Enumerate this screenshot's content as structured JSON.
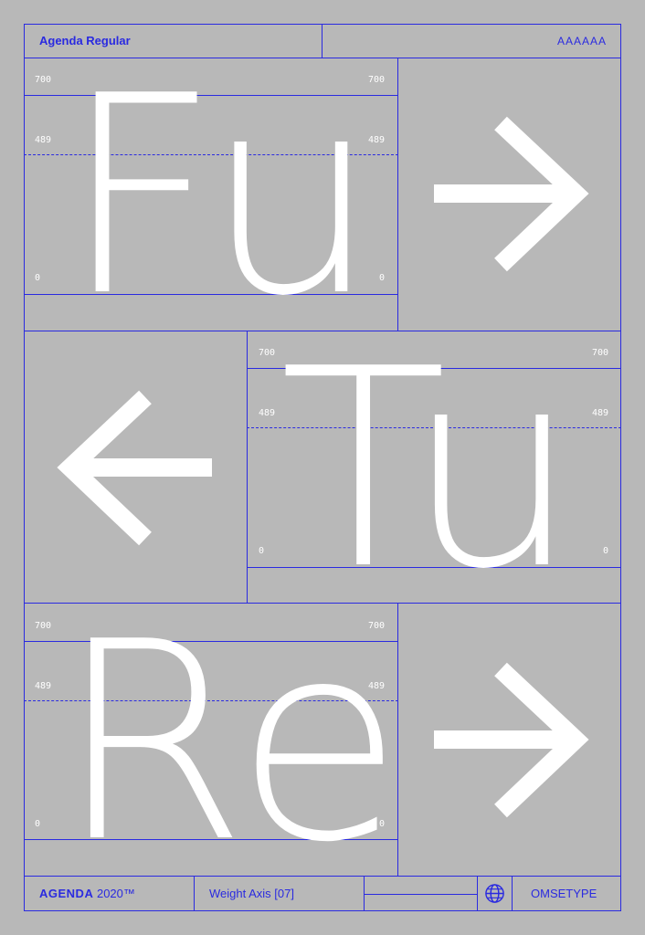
{
  "header": {
    "title": "Agenda Regular",
    "sample": "AAAAAA"
  },
  "metrics": {
    "top": "700",
    "x_height": "489",
    "baseline": "0"
  },
  "panels": [
    {
      "glyphs": "Fu",
      "arrow": "right"
    },
    {
      "glyphs": "Tu",
      "arrow": "left"
    },
    {
      "glyphs": "Re",
      "arrow": "right"
    }
  ],
  "footer": {
    "brand": "AGENDA",
    "year": "2020™",
    "axis_label": "Weight Axis [07]",
    "foundry": "OMSETYPE",
    "globe_icon": "globe-icon"
  },
  "colors": {
    "background": "#b8b8b8",
    "lines": "#2a2ae0",
    "glyphs": "#ffffff"
  }
}
